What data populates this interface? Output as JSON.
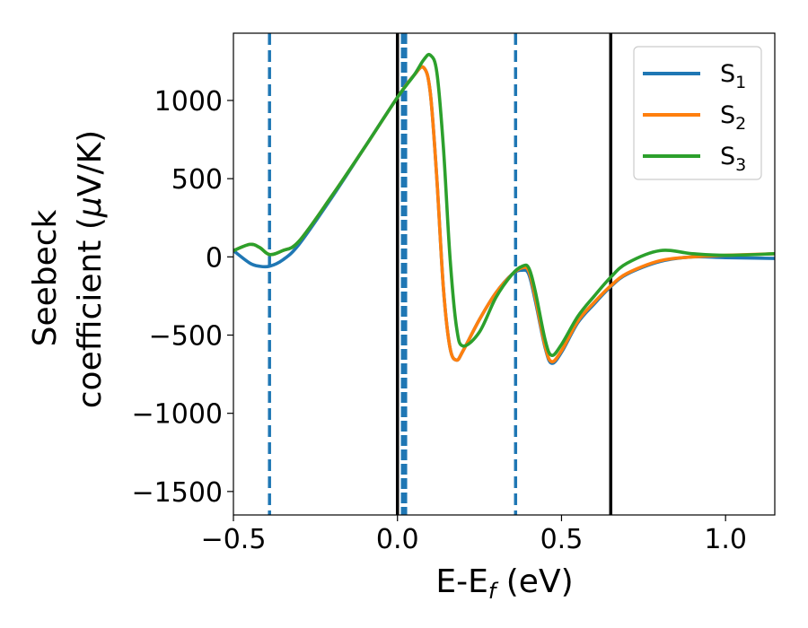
{
  "chart_data": {
    "type": "line",
    "title": "",
    "xlabel": "E-E",
    "xlabel_sub": "f",
    "xlabel_unit": " (eV)",
    "ylabel_line1": "Seebeck",
    "ylabel_line2": "coefficient  (",
    "ylabel_mu": "μ",
    "ylabel_unit": "V/K)",
    "xlim": [
      -0.5,
      1.15
    ],
    "ylim": [
      -1650,
      1430
    ],
    "xticks": [
      -0.5,
      0.0,
      0.5,
      1.0
    ],
    "xtick_labels": [
      "−0.5",
      "0.0",
      "0.5",
      "1.0"
    ],
    "yticks": [
      -1500,
      -1000,
      -500,
      0,
      500,
      1000
    ],
    "ytick_labels": [
      "−1500",
      "−1000",
      "−500",
      "0",
      "500",
      "1000"
    ],
    "grid": false,
    "legend_position": "top-right",
    "vertical_lines": [
      {
        "x": -0.39,
        "style": "dashed",
        "color": "#1f77b4"
      },
      {
        "x": 0.0,
        "style": "solid",
        "color": "#000000"
      },
      {
        "x": 0.02,
        "style": "dashed-thick",
        "color": "#1f77b4"
      },
      {
        "x": 0.36,
        "style": "dashed",
        "color": "#1f77b4"
      },
      {
        "x": 0.65,
        "style": "solid",
        "color": "#000000"
      }
    ],
    "series": [
      {
        "name": "S",
        "sub": "1",
        "color": "#1f77b4",
        "x": [
          -0.5,
          -0.45,
          -0.42,
          -0.39,
          -0.35,
          -0.3,
          -0.2,
          -0.1,
          0.0,
          0.05,
          0.08,
          0.1,
          0.12,
          0.14,
          0.16,
          0.18,
          0.2,
          0.25,
          0.3,
          0.35,
          0.38,
          0.4,
          0.42,
          0.45,
          0.47,
          0.5,
          0.55,
          0.6,
          0.65,
          0.7,
          0.8,
          0.9,
          1.0,
          1.15
        ],
        "y": [
          40,
          -40,
          -60,
          -60,
          -20,
          80,
          380,
          700,
          1020,
          1160,
          1210,
          1050,
          500,
          -200,
          -580,
          -660,
          -600,
          -400,
          -230,
          -110,
          -85,
          -110,
          -280,
          -580,
          -680,
          -610,
          -420,
          -300,
          -190,
          -110,
          -30,
          0,
          -5,
          -10
        ]
      },
      {
        "name": "S",
        "sub": "2",
        "color": "#ff7f0e",
        "x": [
          -0.5,
          -0.45,
          -0.42,
          -0.39,
          -0.35,
          -0.3,
          -0.2,
          -0.1,
          0.0,
          0.05,
          0.08,
          0.1,
          0.12,
          0.14,
          0.16,
          0.18,
          0.2,
          0.25,
          0.3,
          0.35,
          0.38,
          0.4,
          0.42,
          0.45,
          0.47,
          0.5,
          0.55,
          0.6,
          0.65,
          0.7,
          0.8,
          0.9,
          1.0,
          1.15
        ],
        "y": [
          40,
          80,
          60,
          15,
          40,
          100,
          390,
          700,
          1020,
          1160,
          1210,
          1050,
          500,
          -200,
          -580,
          -660,
          -600,
          -400,
          -230,
          -110,
          -70,
          -90,
          -260,
          -570,
          -670,
          -600,
          -410,
          -290,
          -185,
          -105,
          -25,
          0,
          10,
          20
        ]
      },
      {
        "name": "S",
        "sub": "3",
        "color": "#2ca02c",
        "x": [
          -0.5,
          -0.45,
          -0.42,
          -0.39,
          -0.35,
          -0.3,
          -0.2,
          -0.1,
          0.0,
          0.05,
          0.08,
          0.1,
          0.12,
          0.14,
          0.16,
          0.18,
          0.2,
          0.25,
          0.3,
          0.35,
          0.38,
          0.4,
          0.42,
          0.45,
          0.47,
          0.5,
          0.55,
          0.6,
          0.65,
          0.7,
          0.8,
          0.9,
          1.0,
          1.15
        ],
        "y": [
          40,
          80,
          60,
          15,
          40,
          100,
          390,
          700,
          1020,
          1160,
          1260,
          1290,
          1180,
          700,
          0,
          -450,
          -570,
          -480,
          -260,
          -110,
          -60,
          -70,
          -220,
          -530,
          -630,
          -560,
          -380,
          -250,
          -130,
          -40,
          40,
          20,
          10,
          20
        ]
      }
    ]
  }
}
